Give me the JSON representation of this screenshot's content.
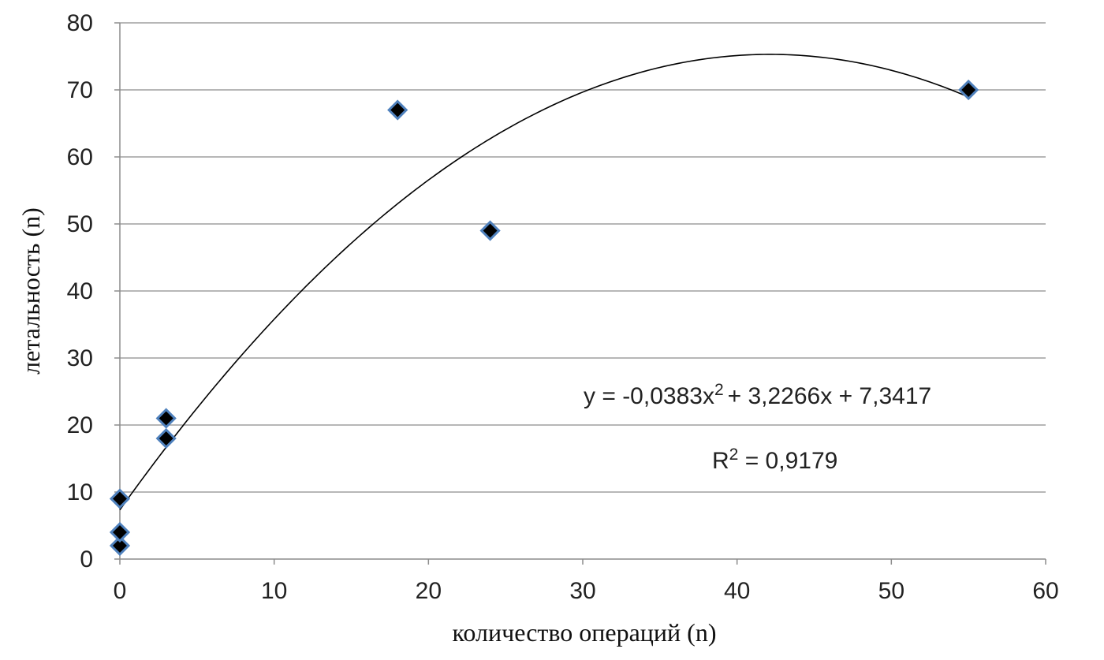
{
  "chart_data": {
    "type": "scatter",
    "xlabel": "количество операций (n)",
    "ylabel": "летальность (n)",
    "xlim": [
      0,
      60
    ],
    "ylim": [
      0,
      80
    ],
    "x_ticks": [
      0,
      10,
      20,
      30,
      40,
      50,
      60
    ],
    "y_ticks": [
      0,
      10,
      20,
      30,
      40,
      50,
      60,
      70,
      80
    ],
    "grid": "horizontal",
    "series": [
      {
        "marker": "diamond",
        "color": "#000000",
        "edge_color": "#4f81bd",
        "points": [
          {
            "x": 0,
            "y": 2
          },
          {
            "x": 0,
            "y": 4
          },
          {
            "x": 0,
            "y": 9
          },
          {
            "x": 3,
            "y": 18
          },
          {
            "x": 3,
            "y": 21
          },
          {
            "x": 18,
            "y": 67
          },
          {
            "x": 24,
            "y": 49
          },
          {
            "x": 55,
            "y": 70
          }
        ]
      }
    ],
    "trendline": {
      "type": "polynomial",
      "order": 2,
      "coefficients": [
        -0.0383,
        3.2266,
        7.3417
      ],
      "x_range": [
        0,
        55
      ],
      "color": "#000000"
    },
    "annotations": {
      "equation_prefix": "y = -0,0383x",
      "equation_exp": "2",
      "equation_suffix": "+ 3,2266x + 7,3417",
      "r2_prefix": "R",
      "r2_exp": "2",
      "r2_suffix": " = 0,9179"
    }
  }
}
